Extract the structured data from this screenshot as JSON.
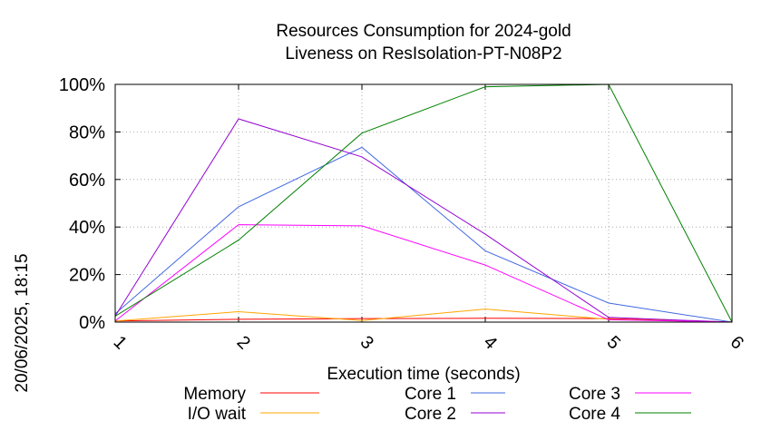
{
  "chart_data": {
    "type": "line",
    "title": [
      "Resources Consumption for 2024-gold",
      "Liveness on ResIsolation-PT-N08P2"
    ],
    "xlabel": "Execution time (seconds)",
    "ylabel": "",
    "side_label": "20/06/2025, 18:15",
    "x": [
      1,
      2,
      3,
      4,
      5,
      6
    ],
    "xlim": [
      1,
      6
    ],
    "ylim": [
      0,
      100
    ],
    "y_ticks": [
      0,
      20,
      40,
      60,
      80,
      100
    ],
    "y_tick_labels": [
      "0%",
      "20%",
      "40%",
      "60%",
      "80%",
      "100%"
    ],
    "x_tick_labels": [
      "1",
      "2",
      "3",
      "4",
      "5",
      "6"
    ],
    "grid": true,
    "legend_position": "bottom",
    "series": [
      {
        "name": "Memory",
        "color": "#ff0000",
        "values": [
          0.5,
          1.2,
          1.5,
          1.6,
          1.5,
          0
        ]
      },
      {
        "name": "I/O wait",
        "color": "#ffa500",
        "values": [
          0.5,
          4.4,
          0.7,
          5.5,
          1.2,
          0
        ]
      },
      {
        "name": "Core 1",
        "color": "#4169e1",
        "values": [
          3.5,
          48.5,
          73.5,
          30,
          8,
          0
        ]
      },
      {
        "name": "Core 2",
        "color": "#9400d3",
        "values": [
          2.5,
          85.5,
          69.5,
          37,
          2,
          0
        ]
      },
      {
        "name": "Core 3",
        "color": "#ff00ff",
        "values": [
          0.5,
          41,
          40.5,
          24,
          1,
          0
        ]
      },
      {
        "name": "Core 4",
        "color": "#008000",
        "values": [
          2.5,
          34.5,
          79.5,
          99,
          100,
          0
        ]
      }
    ]
  }
}
